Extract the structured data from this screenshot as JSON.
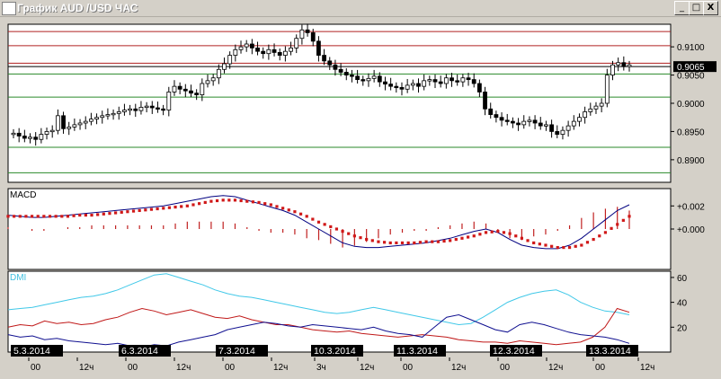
{
  "window": {
    "title": "График AUD /USD ЧАС",
    "buttons": {
      "minimize": "_",
      "maximize": "□",
      "close": "X"
    }
  },
  "chart_data": {
    "type": "candlestick",
    "price": {
      "ylim": [
        0.886,
        0.914
      ],
      "yticks": [
        {
          "v": 0.89,
          "label": "0.8900"
        },
        {
          "v": 0.895,
          "label": "0.8950"
        },
        {
          "v": 0.9,
          "label": "0.9000"
        },
        {
          "v": 0.905,
          "label": "0.9050"
        },
        {
          "v": 0.91,
          "label": "0.9100"
        }
      ],
      "current_label": "0.9065",
      "current_value": 0.9065,
      "hlines_red": [
        0.9127,
        0.9102,
        0.9071
      ],
      "hlines_green": [
        0.9052,
        0.9011,
        0.8922,
        0.8877
      ],
      "candles": [
        0.8947,
        0.8942,
        0.8938,
        0.894,
        0.8936,
        0.8945,
        0.895,
        0.8952,
        0.8978,
        0.8955,
        0.8958,
        0.8962,
        0.8965,
        0.8968,
        0.8972,
        0.8975,
        0.8978,
        0.898,
        0.8982,
        0.8985,
        0.8988,
        0.899,
        0.8987,
        0.8993,
        0.8995,
        0.8992,
        0.899,
        0.8988,
        0.902,
        0.903,
        0.9025,
        0.9022,
        0.9018,
        0.9015,
        0.9035,
        0.904,
        0.9045,
        0.906,
        0.907,
        0.9085,
        0.9095,
        0.91,
        0.9105,
        0.9098,
        0.9092,
        0.9088,
        0.9095,
        0.909,
        0.9085,
        0.9092,
        0.9098,
        0.9115,
        0.913,
        0.9125,
        0.911,
        0.9085,
        0.9075,
        0.9068,
        0.906,
        0.9055,
        0.905,
        0.9048,
        0.9042,
        0.904,
        0.9044,
        0.9048,
        0.9038,
        0.9034,
        0.903,
        0.9028,
        0.9025,
        0.9032,
        0.9035,
        0.903,
        0.904,
        0.9042,
        0.9038,
        0.9035,
        0.9045,
        0.904,
        0.9038,
        0.9045,
        0.9042,
        0.9035,
        0.902,
        0.899,
        0.898,
        0.8975,
        0.897,
        0.8968,
        0.8965,
        0.8962,
        0.8968,
        0.897,
        0.8965,
        0.896,
        0.8962,
        0.895,
        0.8945,
        0.8952,
        0.896,
        0.8968,
        0.8975,
        0.8985,
        0.899,
        0.8995,
        0.9,
        0.905,
        0.9068,
        0.9072,
        0.9065,
        0.9068
      ]
    },
    "macd": {
      "label": "MACD",
      "ylim": [
        -0.0035,
        0.0035
      ],
      "yticks": [
        {
          "v": 0.002,
          "label": "+0.002"
        },
        {
          "v": 0.0,
          "label": "+0.000"
        }
      ],
      "macd_line": [
        0.0012,
        0.0011,
        0.001,
        0.001,
        0.0011,
        0.0012,
        0.0013,
        0.0014,
        0.0015,
        0.0016,
        0.0017,
        0.0018,
        0.0019,
        0.002,
        0.0022,
        0.0024,
        0.0026,
        0.0028,
        0.0029,
        0.0028,
        0.0025,
        0.0022,
        0.0019,
        0.0016,
        0.0012,
        0.0006,
        0.0,
        -0.0006,
        -0.0012,
        -0.0015,
        -0.0016,
        -0.0016,
        -0.0015,
        -0.0014,
        -0.0013,
        -0.0012,
        -0.001,
        -0.0008,
        -0.0005,
        -0.0002,
        0.0,
        -0.0003,
        -0.0009,
        -0.0014,
        -0.0016,
        -0.0017,
        -0.0017,
        -0.0014,
        -0.0008,
        0.0,
        0.0008,
        0.0016,
        0.0021
      ],
      "signal_line": [
        0.0011,
        0.0011,
        0.0011,
        0.0011,
        0.0011,
        0.0011,
        0.0012,
        0.0012,
        0.0013,
        0.0014,
        0.0015,
        0.0016,
        0.0017,
        0.0018,
        0.0019,
        0.002,
        0.0022,
        0.0024,
        0.0025,
        0.0025,
        0.0024,
        0.0023,
        0.0021,
        0.0018,
        0.0015,
        0.0011,
        0.0006,
        0.0002,
        -0.0002,
        -0.0006,
        -0.0009,
        -0.0011,
        -0.0012,
        -0.0012,
        -0.0012,
        -0.0011,
        -0.0011,
        -0.001,
        -0.0008,
        -0.0006,
        -0.0003,
        -0.0002,
        -0.0004,
        -0.0008,
        -0.0012,
        -0.0014,
        -0.0016,
        -0.0016,
        -0.0014,
        -0.0009,
        -0.0003,
        0.0004,
        0.0011
      ],
      "histogram": [
        0.0001,
        0.0,
        -0.0001,
        -0.0001,
        0.0,
        0.0001,
        0.0001,
        0.0002,
        0.0002,
        0.0002,
        0.0002,
        0.0002,
        0.0002,
        0.0002,
        0.0003,
        0.0004,
        0.0004,
        0.0004,
        0.0004,
        0.0003,
        0.0001,
        -0.0001,
        -0.0002,
        -0.0002,
        -0.0003,
        -0.0005,
        -0.0006,
        -0.0008,
        -0.001,
        -0.0009,
        -0.0007,
        -0.0005,
        -0.0003,
        -0.0002,
        -0.0001,
        -0.0001,
        0.0001,
        0.0002,
        0.0003,
        0.0004,
        0.0003,
        -0.0001,
        -0.0005,
        -0.0006,
        -0.0004,
        -0.0003,
        -0.0001,
        0.0002,
        0.0006,
        0.0009,
        0.0011,
        0.0012,
        0.001
      ]
    },
    "dmi": {
      "label": "DMI",
      "ylim": [
        0,
        65
      ],
      "yticks": [
        {
          "v": 20,
          "label": "20"
        },
        {
          "v": 40,
          "label": "40"
        },
        {
          "v": 60,
          "label": "60"
        }
      ],
      "adx": [
        34,
        35,
        36,
        38,
        40,
        42,
        44,
        45,
        47,
        50,
        54,
        58,
        62,
        63,
        60,
        57,
        54,
        50,
        47,
        45,
        44,
        42,
        40,
        38,
        36,
        34,
        32,
        31,
        32,
        34,
        36,
        34,
        32,
        30,
        28,
        26,
        24,
        22,
        23,
        28,
        34,
        40,
        44,
        47,
        49,
        50,
        46,
        40,
        36,
        33,
        32,
        30
      ],
      "plus_di": [
        20,
        22,
        21,
        25,
        23,
        24,
        22,
        23,
        26,
        28,
        32,
        35,
        33,
        30,
        32,
        34,
        31,
        28,
        27,
        29,
        26,
        24,
        22,
        22,
        20,
        18,
        17,
        16,
        17,
        15,
        14,
        13,
        12,
        13,
        14,
        13,
        12,
        10,
        9,
        8,
        8,
        7,
        9,
        8,
        7,
        6,
        7,
        8,
        12,
        20,
        35,
        32
      ],
      "minus_di": [
        14,
        12,
        13,
        10,
        11,
        9,
        8,
        7,
        6,
        7,
        5,
        4,
        6,
        5,
        8,
        10,
        12,
        14,
        18,
        20,
        22,
        24,
        23,
        21,
        20,
        22,
        21,
        20,
        19,
        18,
        20,
        17,
        15,
        14,
        12,
        20,
        28,
        30,
        26,
        22,
        18,
        16,
        22,
        24,
        22,
        19,
        16,
        14,
        13,
        12,
        10,
        7
      ]
    },
    "x_axis": {
      "dates": [
        {
          "i": 0,
          "label": "5.3.2014"
        },
        {
          "i": 1,
          "label": "6.3.2014"
        },
        {
          "i": 2,
          "label": "7.3.2014"
        },
        {
          "i": 3,
          "label": "10.3.2014"
        },
        {
          "i": 4,
          "label": "11.3.2014"
        },
        {
          "i": 5,
          "label": "12.3.2014"
        },
        {
          "i": 6,
          "label": "13.3.2014"
        }
      ],
      "hours": [
        "00",
        "12ч",
        "00",
        "12ч",
        "00",
        "12ч",
        "3ч",
        "12ч",
        "00",
        "12ч",
        "00",
        "12ч",
        "00",
        "12ч"
      ]
    }
  }
}
